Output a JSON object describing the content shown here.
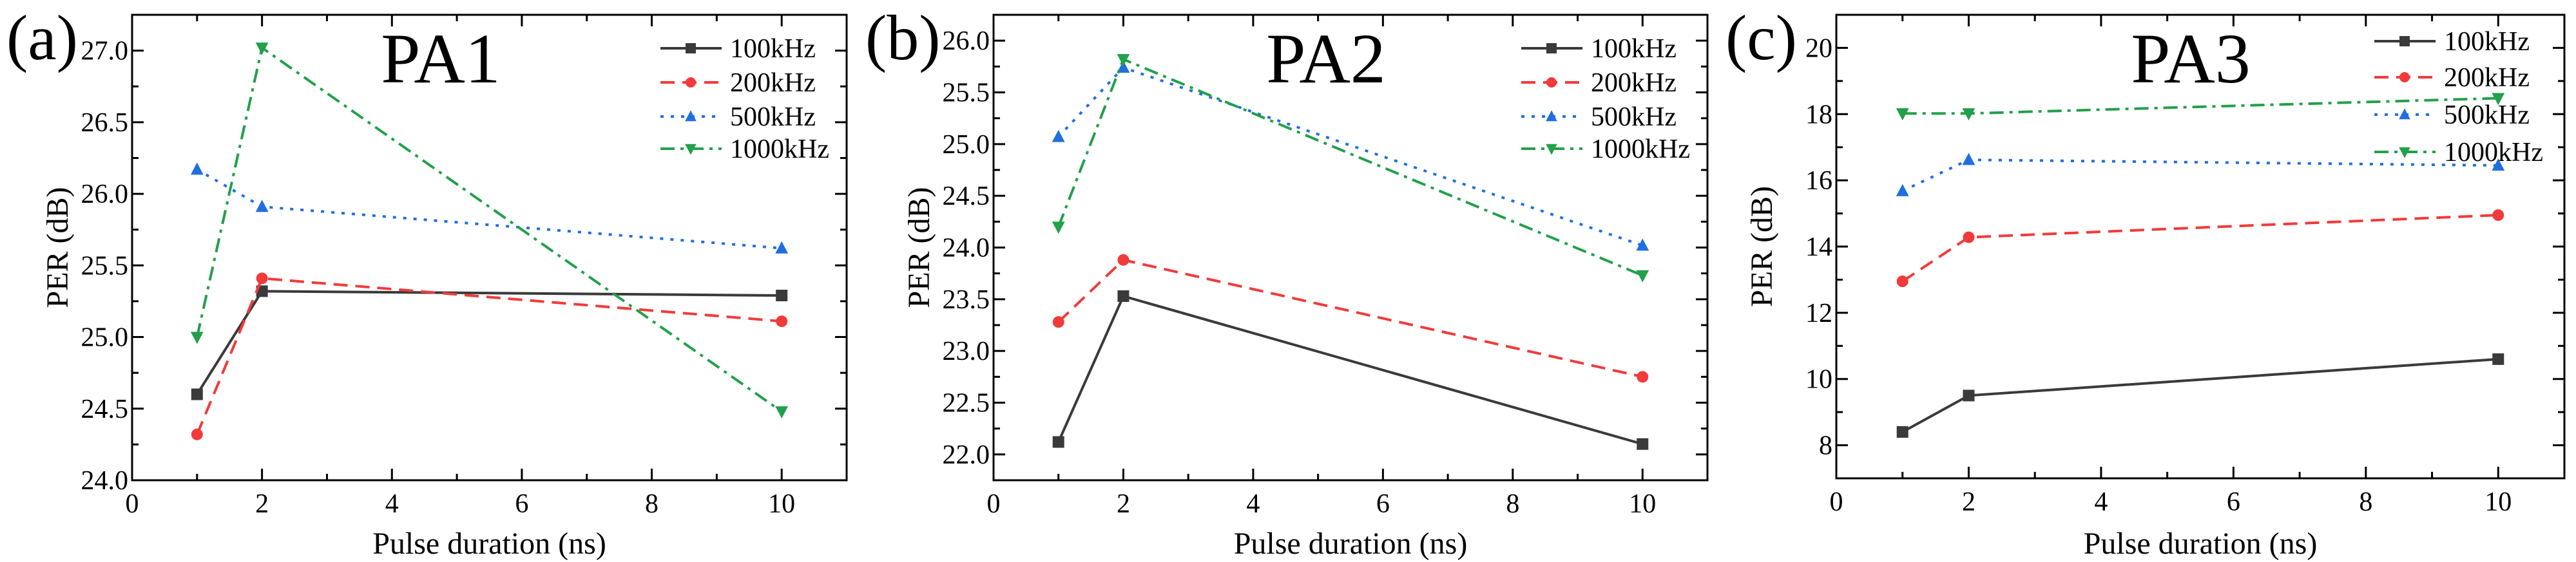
{
  "chart_data": [
    {
      "type": "line",
      "panel_label": "(a)",
      "title": "PA1",
      "xlabel": "Pulse duration (ns)",
      "ylabel": "PER (dB)",
      "xlim": [
        0,
        11
      ],
      "ylim": [
        24.0,
        27.25
      ],
      "xticks": [
        0,
        2,
        4,
        6,
        8,
        10
      ],
      "yticks": [
        24.0,
        24.5,
        25.0,
        25.5,
        26.0,
        26.5,
        27.0
      ],
      "ytick_labels": [
        "24.0",
        "24.5",
        "25.0",
        "25.5",
        "26.0",
        "26.5",
        "27.0"
      ],
      "grid": false,
      "legend": "top-right",
      "x": [
        1,
        2,
        10
      ],
      "series": [
        {
          "name": "100kHz",
          "values": [
            24.6,
            25.32,
            25.29
          ]
        },
        {
          "name": "200kHz",
          "values": [
            24.32,
            25.41,
            25.11
          ]
        },
        {
          "name": "500kHz",
          "values": [
            26.17,
            25.91,
            25.62
          ]
        },
        {
          "name": "1000kHz",
          "values": [
            25.0,
            27.02,
            24.48
          ]
        }
      ]
    },
    {
      "type": "line",
      "panel_label": "(b)",
      "title": "PA2",
      "xlabel": "Pulse duration (ns)",
      "ylabel": "PER (dB)",
      "xlim": [
        0,
        11
      ],
      "ylim": [
        21.75,
        26.25
      ],
      "xticks": [
        0,
        2,
        4,
        6,
        8,
        10
      ],
      "yticks": [
        22.0,
        22.5,
        23.0,
        23.5,
        24.0,
        24.5,
        25.0,
        25.5,
        26.0
      ],
      "ytick_labels": [
        "22.0",
        "22.5",
        "23.0",
        "23.5",
        "24.0",
        "24.5",
        "25.0",
        "25.5",
        "26.0"
      ],
      "grid": false,
      "legend": "top-right",
      "x": [
        1,
        2,
        10
      ],
      "series": [
        {
          "name": "100kHz",
          "values": [
            22.12,
            23.53,
            22.1
          ]
        },
        {
          "name": "200kHz",
          "values": [
            23.28,
            23.88,
            22.75
          ]
        },
        {
          "name": "500kHz",
          "values": [
            25.07,
            25.74,
            24.02
          ]
        },
        {
          "name": "1000kHz",
          "values": [
            24.2,
            25.82,
            23.73
          ]
        }
      ]
    },
    {
      "type": "line",
      "panel_label": "(c)",
      "title": "PA3",
      "xlabel": "Pulse duration (ns)",
      "ylabel": "PER (dB)",
      "xlim": [
        0,
        11
      ],
      "ylim": [
        7,
        21
      ],
      "xticks": [
        0,
        2,
        4,
        6,
        8,
        10
      ],
      "yticks": [
        8,
        10,
        12,
        14,
        16,
        18,
        20
      ],
      "ytick_labels": [
        "8",
        "10",
        "12",
        "14",
        "16",
        "18",
        "20"
      ],
      "grid": false,
      "legend": "top-right",
      "x": [
        1,
        2,
        10
      ],
      "series": [
        {
          "name": "100kHz",
          "values": [
            8.4,
            9.5,
            10.6
          ]
        },
        {
          "name": "200kHz",
          "values": [
            12.95,
            14.28,
            14.95
          ]
        },
        {
          "name": "500kHz",
          "values": [
            15.68,
            16.62,
            16.45
          ]
        },
        {
          "name": "1000kHz",
          "values": [
            18.02,
            18.02,
            18.48
          ]
        }
      ]
    }
  ],
  "series_styles": [
    {
      "color": "#3a3a3a",
      "dash": "solid",
      "marker": "square"
    },
    {
      "color": "#f23a3a",
      "dash": "dashed",
      "marker": "circle"
    },
    {
      "color": "#1f6fe0",
      "dash": "dotted",
      "marker": "triangle-up"
    },
    {
      "color": "#22a04a",
      "dash": "dash-dot",
      "marker": "triangle-down"
    }
  ]
}
